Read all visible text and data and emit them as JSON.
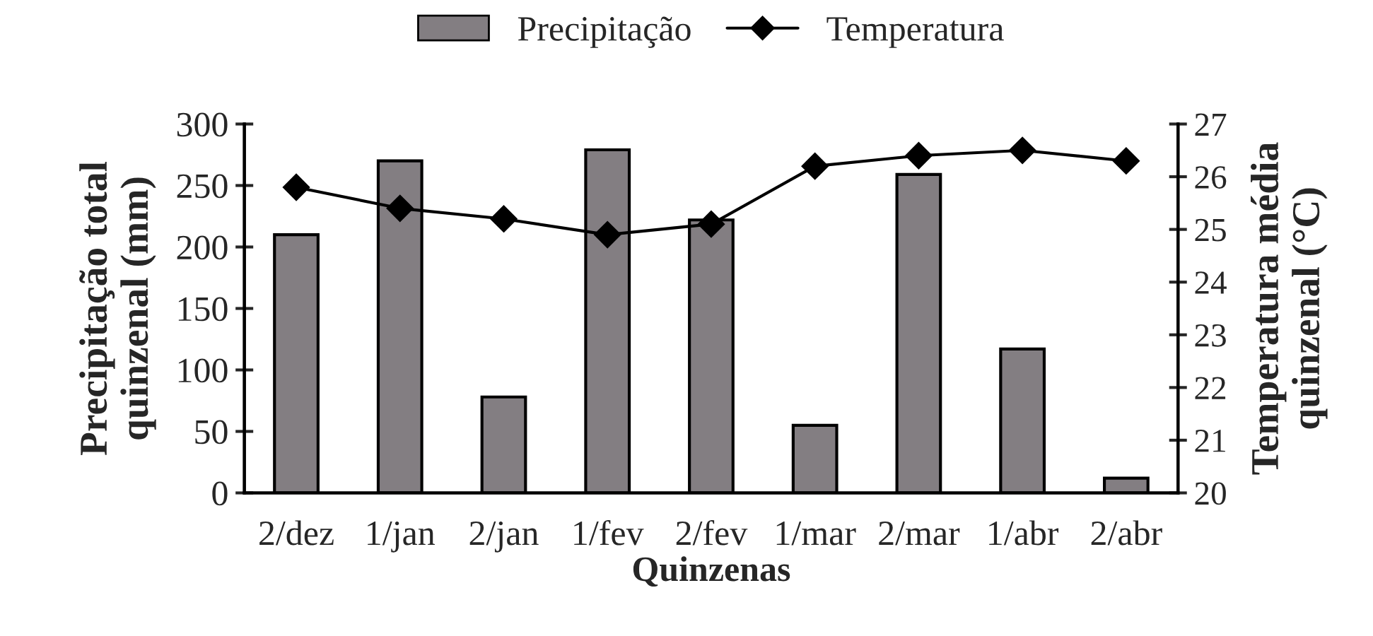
{
  "chart_data": {
    "type": "bar",
    "categories": [
      "2/dez",
      "1/jan",
      "2/jan",
      "1/fev",
      "2/fev",
      "1/mar",
      "2/mar",
      "1/abr",
      "2/abr"
    ],
    "series": [
      {
        "name": "Precipitação",
        "color": "#837e82",
        "values": [
          210,
          270,
          78,
          279,
          222,
          55,
          259,
          117,
          12
        ]
      },
      {
        "name": "Temperatura",
        "type": "line",
        "axis": "y2",
        "color": "#000000",
        "marker": "diamond",
        "values": [
          25.8,
          25.4,
          25.2,
          24.9,
          25.1,
          26.2,
          26.4,
          26.5,
          26.3
        ]
      }
    ],
    "xlabel": "Quinzenas",
    "ylabel": "Precipitação total\nquinzenal (mm)",
    "y2label": "Temperatura média\nquinzenal (°C)",
    "ylim": [
      0,
      300
    ],
    "yticks": [
      0,
      50,
      100,
      150,
      200,
      250,
      300
    ],
    "y2lim": [
      20,
      27
    ],
    "y2ticks": [
      20,
      21,
      22,
      23,
      24,
      25,
      26,
      27
    ],
    "grid": false,
    "legend": "top"
  }
}
